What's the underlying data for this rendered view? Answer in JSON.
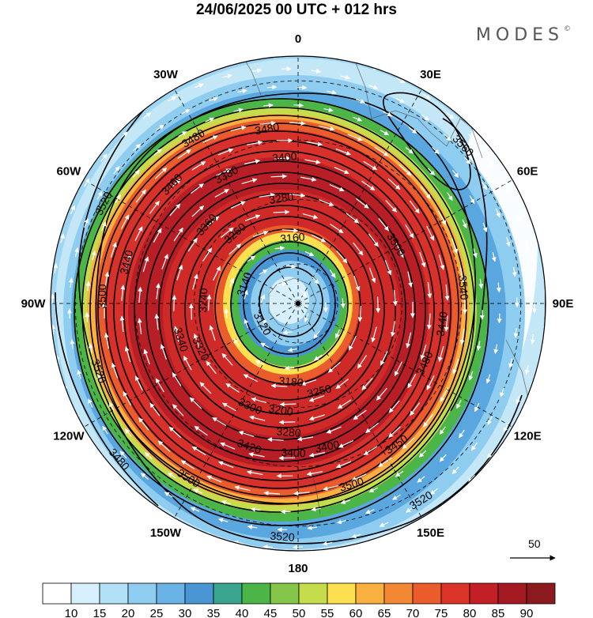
{
  "header": {
    "title": "24/06/2025  00 UTC  + 012 hrs",
    "brand": "MODES",
    "brand_mark": "©"
  },
  "map": {
    "projection": "polar-stereographic-south",
    "longitude_labels": [
      {
        "text": "0",
        "lon": 0
      },
      {
        "text": "30E",
        "lon": 30
      },
      {
        "text": "60E",
        "lon": 60
      },
      {
        "text": "90E",
        "lon": 90
      },
      {
        "text": "120E",
        "lon": 120
      },
      {
        "text": "150E",
        "lon": 150
      },
      {
        "text": "180",
        "lon": 180
      },
      {
        "text": "150W",
        "lon": -150
      },
      {
        "text": "120W",
        "lon": -120
      },
      {
        "text": "90W",
        "lon": -90
      },
      {
        "text": "60W",
        "lon": -60
      },
      {
        "text": "30W",
        "lon": -30
      }
    ],
    "contour_labels": [
      {
        "text": "3480"
      },
      {
        "text": "3480"
      },
      {
        "text": "3460"
      },
      {
        "text": "3400"
      },
      {
        "text": "3380"
      },
      {
        "text": "3360"
      },
      {
        "text": "3280"
      },
      {
        "text": "3260"
      },
      {
        "text": "3160"
      },
      {
        "text": "3140"
      },
      {
        "text": "3120"
      },
      {
        "text": "3180"
      },
      {
        "text": "3240"
      },
      {
        "text": "3200"
      },
      {
        "text": "3340"
      },
      {
        "text": "3320"
      },
      {
        "text": "3300"
      },
      {
        "text": "3250"
      },
      {
        "text": "3280"
      },
      {
        "text": "3400"
      },
      {
        "text": "3420"
      },
      {
        "text": "3400"
      },
      {
        "text": "3450"
      },
      {
        "text": "3500"
      },
      {
        "text": "3500"
      },
      {
        "text": "3520"
      },
      {
        "text": "3520"
      },
      {
        "text": "3520"
      },
      {
        "text": "3540"
      },
      {
        "text": "3560"
      },
      {
        "text": "3480"
      },
      {
        "text": "3500"
      },
      {
        "text": "3520"
      },
      {
        "text": "3440"
      },
      {
        "text": "3500"
      },
      {
        "text": "3480"
      },
      {
        "text": "3440"
      }
    ],
    "wind_reference": {
      "value": "50"
    }
  },
  "colorbar": {
    "levels": [
      10,
      15,
      20,
      25,
      30,
      35,
      40,
      45,
      50,
      55,
      60,
      65,
      70,
      75,
      80,
      85,
      90
    ],
    "colors": [
      "#ffffff",
      "#d6f0fd",
      "#b1e0f7",
      "#8fcdf0",
      "#6ab3e6",
      "#4a95d3",
      "#3aa58f",
      "#4cb548",
      "#85c54a",
      "#c5dc4c",
      "#fde050",
      "#f9b040",
      "#f28834",
      "#eb5c2c",
      "#dc3328",
      "#c21f26",
      "#a31a22",
      "#8b1a1e"
    ]
  }
}
